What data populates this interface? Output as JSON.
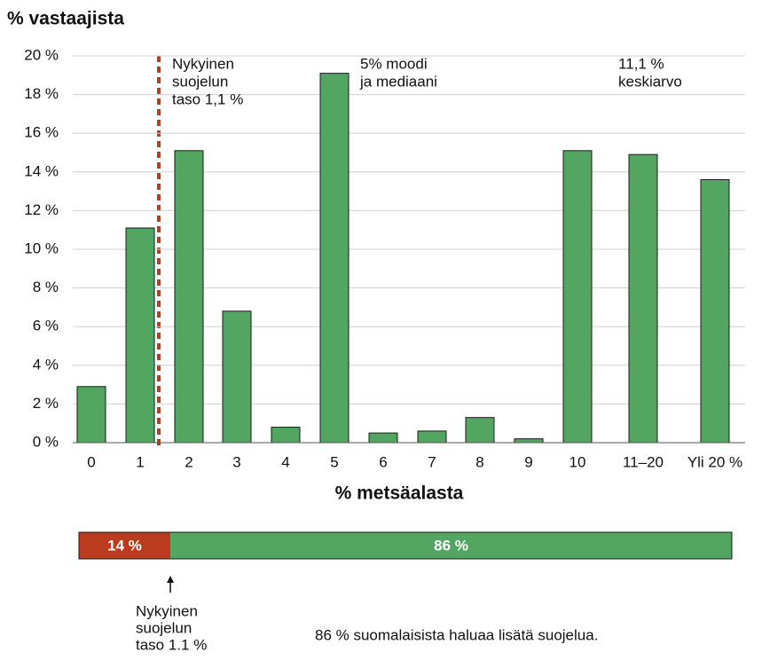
{
  "chart_data": [
    {
      "type": "bar",
      "title": "% vastaajista",
      "xlabel": "% metsäalasta",
      "categories": [
        "0",
        "1",
        "2",
        "3",
        "4",
        "5",
        "6",
        "7",
        "8",
        "9",
        "10",
        "11–20",
        "Yli 20 %"
      ],
      "values": [
        2.9,
        11.1,
        15.1,
        6.8,
        0.8,
        19.1,
        0.5,
        0.6,
        1.3,
        0.2,
        15.1,
        14.9,
        13.6
      ],
      "color": "#52a661",
      "ylim": [
        0,
        20
      ],
      "yticks": [
        {
          "value": 0,
          "label": "0 %"
        },
        {
          "value": 2,
          "label": "2 %"
        },
        {
          "value": 4,
          "label": "4 %"
        },
        {
          "value": 6,
          "label": "6 %"
        },
        {
          "value": 8,
          "label": "8 %"
        },
        {
          "value": 10,
          "label": "10 %"
        },
        {
          "value": 12,
          "label": "12 %"
        },
        {
          "value": 14,
          "label": "14 %"
        },
        {
          "value": 16,
          "label": "16 %"
        },
        {
          "value": 18,
          "label": "18 %"
        },
        {
          "value": 20,
          "label": "20 %"
        }
      ],
      "grid": true,
      "annotations": [
        {
          "lines": [
            "Nykyinen",
            "suojelun",
            "taso 1,1 %"
          ]
        },
        {
          "lines": [
            "5% moodi",
            "ja mediaani"
          ]
        },
        {
          "lines": [
            "11,1 %",
            "keskiarvo"
          ]
        }
      ]
    },
    {
      "type": "stacked_hbar",
      "values": [
        14,
        86
      ],
      "value_labels": [
        "14 %",
        "86 %"
      ],
      "colors": [
        "#bb3b1e",
        "#52a661"
      ],
      "xlim": [
        0,
        100
      ],
      "annotations": [
        {
          "lines": [
            "Nykyinen",
            "suojelun",
            "taso 1.1 %"
          ]
        },
        {
          "lines": [
            "86 % suomalaisista haluaa lisätä suojelua."
          ]
        }
      ]
    }
  ]
}
